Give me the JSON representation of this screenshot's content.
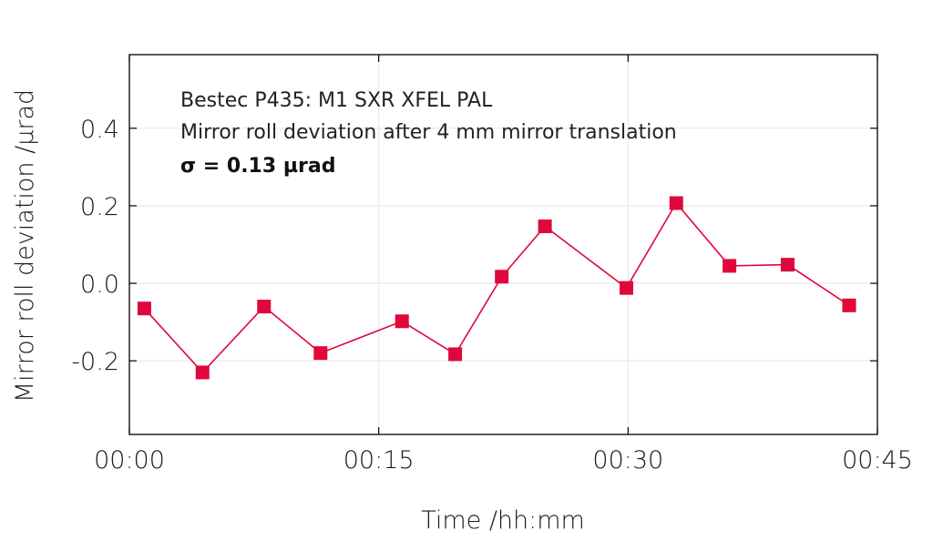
{
  "chart_data": {
    "type": "line",
    "xlabel": "Time /hh:mm",
    "ylabel": "Mirror roll deviation /µrad",
    "xlim": [
      0,
      45
    ],
    "ylim": [
      -0.39,
      0.59
    ],
    "x_ticks": [
      {
        "value": 0,
        "label": "00:00"
      },
      {
        "value": 15,
        "label": "00:15"
      },
      {
        "value": 30,
        "label": "00:30"
      },
      {
        "value": 45,
        "label": "00:45"
      }
    ],
    "y_ticks": [
      {
        "value": -0.2,
        "label": "-0.2"
      },
      {
        "value": 0.0,
        "label": "0.0"
      },
      {
        "value": 0.2,
        "label": "0.2"
      },
      {
        "value": 0.4,
        "label": "0.4"
      }
    ],
    "grid": true,
    "annotations": [
      "Bestec P435: M1 SXR XFEL PAL",
      "Mirror roll deviation after 4 mm mirror translation",
      "σ = 0.13 µrad"
    ],
    "series": [
      {
        "color": "#e0073d",
        "marker": "square",
        "x": [
          0.9,
          4.4,
          8.1,
          11.5,
          16.4,
          19.6,
          22.4,
          25.0,
          29.9,
          32.9,
          36.1,
          39.6,
          43.3
        ],
        "y": [
          -0.065,
          -0.23,
          -0.06,
          -0.18,
          -0.098,
          -0.183,
          0.017,
          0.147,
          -0.012,
          0.207,
          0.045,
          0.048,
          -0.057
        ]
      }
    ]
  }
}
